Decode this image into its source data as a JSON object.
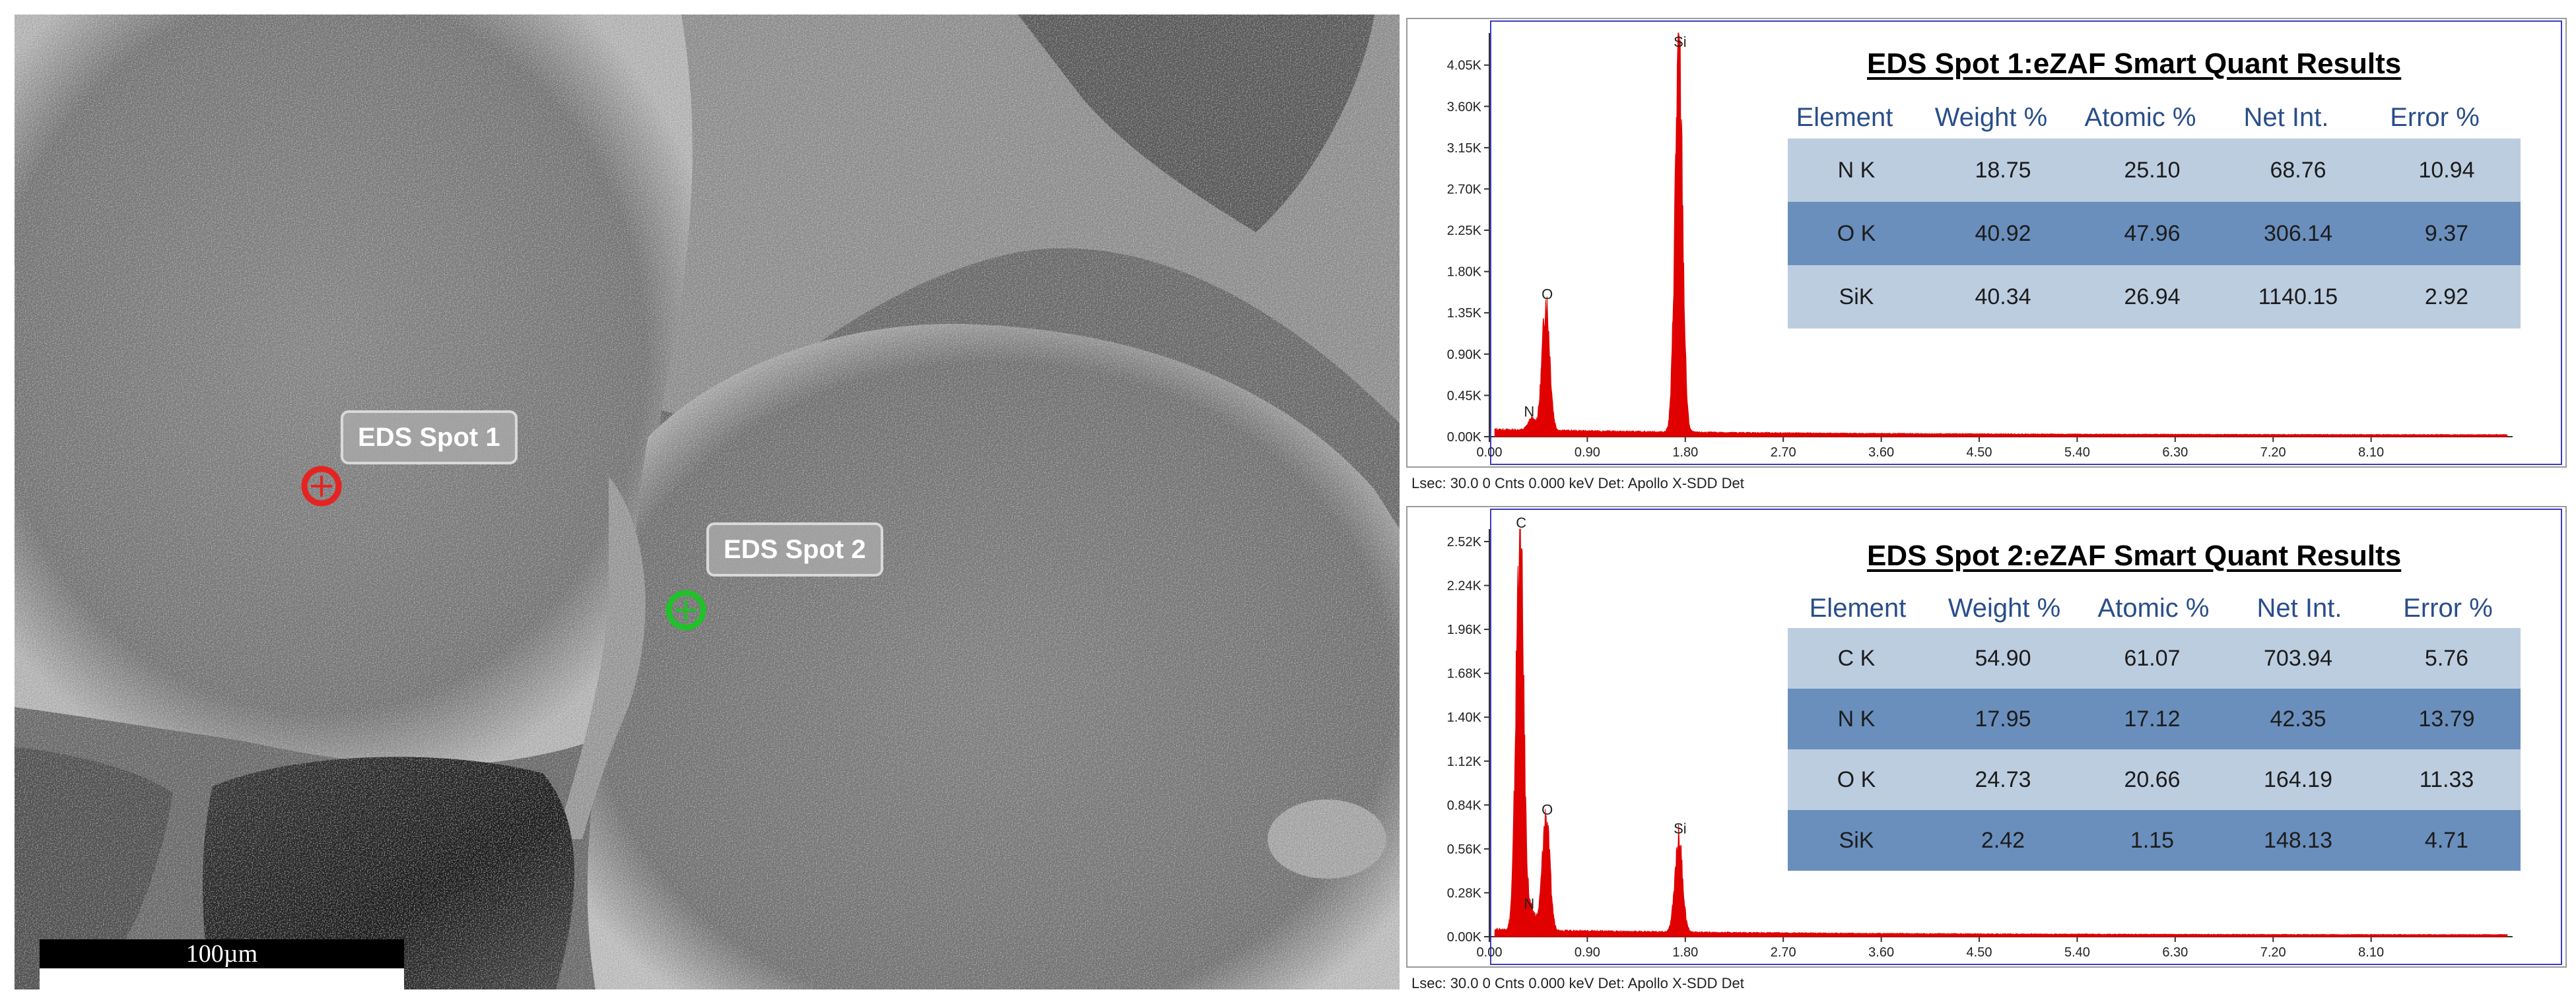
{
  "micrograph": {
    "spot_labels": [
      {
        "text": "EDS Spot 1",
        "marker_color": "#e52421"
      },
      {
        "text": "EDS Spot 2",
        "marker_color": "#22c02a"
      }
    ],
    "scale_bar": "100µm"
  },
  "chart_data": [
    {
      "type": "bar",
      "title": "",
      "xlabel": "",
      "ylabel": "",
      "x_ticks": [
        "0.00",
        "0.90",
        "1.80",
        "2.70",
        "3.60",
        "4.50",
        "5.40",
        "6.30",
        "7.20",
        "8.10"
      ],
      "y_ticks": [
        "0.00K",
        "0.45K",
        "0.90K",
        "1.35K",
        "1.80K",
        "2.25K",
        "2.70K",
        "3.15K",
        "3.60K",
        "4.05K"
      ],
      "xlim": [
        0,
        9.4
      ],
      "ylim": [
        0,
        4.4
      ],
      "color": "#e00000",
      "peaks": [
        {
          "label": "N",
          "x": 0.39,
          "y": 0.12
        },
        {
          "label": "O",
          "x": 0.52,
          "y": 1.4
        },
        {
          "label": "Si",
          "x": 1.74,
          "y": 4.15
        }
      ],
      "caption": "Lsec: 30.0 0 Cnts  0.000 keV Det: Apollo X-SDD Det",
      "table": {
        "title": "EDS Spot 1:eZAF Smart Quant Results",
        "headers": [
          "Element",
          "Weight %",
          "Atomic %",
          "Net Int.",
          "Error %"
        ],
        "rows": [
          [
            "N K",
            "18.75",
            "25.10",
            "68.76",
            "10.94"
          ],
          [
            "O K",
            "40.92",
            "47.96",
            "306.14",
            "9.37"
          ],
          [
            "SiK",
            "40.34",
            "26.94",
            "1140.15",
            "2.92"
          ]
        ]
      }
    },
    {
      "type": "bar",
      "title": "",
      "xlabel": "",
      "ylabel": "",
      "x_ticks": [
        "0.00",
        "0.90",
        "1.80",
        "2.70",
        "3.60",
        "4.50",
        "5.40",
        "6.30",
        "7.20",
        "8.10"
      ],
      "y_ticks": [
        "0.00K",
        "0.28K",
        "0.56K",
        "0.84K",
        "1.12K",
        "1.40K",
        "1.68K",
        "1.96K",
        "2.24K",
        "2.52K"
      ],
      "xlim": [
        0,
        9.4
      ],
      "ylim": [
        0,
        2.6
      ],
      "color": "#e00000",
      "peaks": [
        {
          "label": "C",
          "x": 0.28,
          "y": 2.55
        },
        {
          "label": "N",
          "x": 0.39,
          "y": 0.12
        },
        {
          "label": "O",
          "x": 0.52,
          "y": 0.72
        },
        {
          "label": "Si",
          "x": 1.74,
          "y": 0.6
        }
      ],
      "caption": "Lsec: 30.0 0 Cnts  0.000 keV Det: Apollo X-SDD Det",
      "table": {
        "title": "EDS Spot 2:eZAF Smart Quant Results",
        "headers": [
          "Element",
          "Weight %",
          "Atomic %",
          "Net Int.",
          "Error %"
        ],
        "rows": [
          [
            "C K",
            "54.90",
            "61.07",
            "703.94",
            "5.76"
          ],
          [
            "N K",
            "17.95",
            "17.12",
            "42.35",
            "13.79"
          ],
          [
            "O K",
            "24.73",
            "20.66",
            "164.19",
            "11.33"
          ],
          [
            "SiK",
            "2.42",
            "1.15",
            "148.13",
            "4.71"
          ]
        ]
      }
    }
  ]
}
